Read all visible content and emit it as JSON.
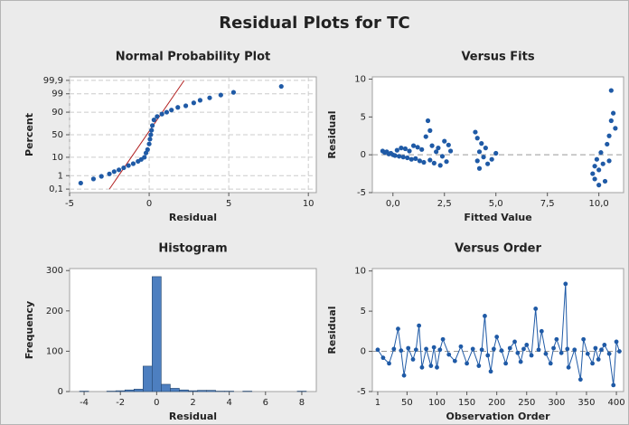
{
  "title": "Residual Plots for TC",
  "chart_data": [
    {
      "type": "scatter",
      "title": "Normal Probability Plot",
      "xlabel": "Residual",
      "ylabel": "Percent",
      "yscale": "probability",
      "grid": true,
      "color": "#1f5aa6",
      "xlim": [
        -5,
        10.5
      ],
      "xticks": [
        -5,
        0,
        5,
        10
      ],
      "ylim": [
        0.05,
        99.95
      ],
      "yticks": [
        {
          "value": 0.1,
          "label": "0,1"
        },
        1,
        10,
        50,
        90,
        99,
        {
          "value": 99.9,
          "label": "99,9"
        }
      ],
      "x": [
        -4.3,
        -3.5,
        -3,
        -2.5,
        -2.2,
        -1.9,
        -1.6,
        -1.3,
        -1,
        -0.7,
        -0.5,
        -0.3,
        -0.2,
        -0.1,
        0,
        0.05,
        0.1,
        0.15,
        0.2,
        0.3,
        0.5,
        0.8,
        1.1,
        1.4,
        1.8,
        2.3,
        2.8,
        3.2,
        3.8,
        4.5,
        5.3,
        8.3
      ],
      "values": [
        0.3,
        0.6,
        0.9,
        1.3,
        1.8,
        2.3,
        3,
        4,
        5,
        6.5,
        8,
        10,
        15,
        20,
        30,
        40,
        50,
        60,
        70,
        80,
        85,
        88,
        90,
        92,
        94,
        95,
        96.5,
        97.5,
        98.2,
        98.8,
        99.2,
        99.7
      ],
      "fit_line": {
        "color": "#b22222",
        "x": [
          -2.5,
          2.2
        ],
        "values": [
          0.1,
          99.9
        ]
      }
    },
    {
      "type": "scatter",
      "title": "Versus Fits",
      "xlabel": "Fitted Value",
      "ylabel": "Residual",
      "color": "#1f5aa6",
      "xlim": [
        -1,
        11.2
      ],
      "xticks": [
        {
          "value": 0,
          "label": "0,0"
        },
        {
          "value": 2.5,
          "label": "2,5"
        },
        {
          "value": 5,
          "label": "5,0"
        },
        {
          "value": 7.5,
          "label": "7,5"
        },
        {
          "value": 10,
          "label": "10,0"
        }
      ],
      "ylim": [
        -5,
        10.3
      ],
      "yticks": [
        -5,
        0,
        5,
        10
      ],
      "reference_line": 0,
      "x": [
        -0.5,
        -0.4,
        -0.3,
        -0.2,
        -0.1,
        0,
        0.1,
        0.2,
        0.3,
        0.4,
        0.5,
        0.6,
        0.7,
        0.8,
        0.9,
        1,
        1.1,
        1.2,
        1.3,
        1.4,
        1.5,
        1.6,
        1.7,
        1.8,
        1.8,
        1.9,
        2,
        2.1,
        2.2,
        2.3,
        2.4,
        2.5,
        2.6,
        2.7,
        2.8,
        4,
        4.1,
        4.1,
        4.2,
        4.2,
        4.3,
        4.4,
        4.5,
        4.6,
        4.8,
        5,
        9.7,
        9.8,
        9.8,
        9.9,
        10,
        10,
        10.1,
        10.2,
        10.3,
        10.4,
        10.5,
        10.5,
        10.6,
        10.6,
        10.7,
        10.8
      ],
      "values": [
        0.5,
        0.3,
        0.4,
        0.1,
        0.2,
        0,
        -0.1,
        0.6,
        -0.2,
        0.9,
        -0.3,
        0.8,
        -0.4,
        0.5,
        -0.6,
        1.2,
        -0.5,
        1,
        -0.8,
        0.7,
        -1,
        2.4,
        4.5,
        3.2,
        -0.7,
        1.2,
        -1.1,
        0.4,
        0.9,
        -1.4,
        -0.2,
        1.8,
        -0.9,
        1.3,
        0.5,
        3,
        2.2,
        -0.8,
        0.4,
        -1.8,
        1.5,
        -0.3,
        0.9,
        -1.2,
        -0.6,
        0.2,
        -2.5,
        -1.5,
        -3.2,
        -0.6,
        -2,
        -4,
        0.3,
        -1.2,
        -3.5,
        1.4,
        2.5,
        -0.8,
        8.5,
        4.5,
        5.5,
        3.5
      ]
    },
    {
      "type": "histogram",
      "title": "Histogram",
      "xlabel": "Residual",
      "ylabel": "Frequency",
      "color": "#4d7fc0",
      "xlim": [
        -4.8,
        8.8
      ],
      "xticks": [
        -4,
        -2,
        0,
        2,
        4,
        6,
        8
      ],
      "ylim": [
        0,
        305
      ],
      "yticks": [
        0,
        100,
        200,
        300
      ],
      "bins": [
        -4.25,
        -3.75,
        -3.25,
        -2.75,
        -2.25,
        -1.75,
        -1.25,
        -0.75,
        -0.25,
        0.25,
        0.75,
        1.25,
        1.75,
        2.25,
        2.75,
        3.25,
        3.75,
        4.25,
        4.75,
        5.25,
        5.75,
        6.25,
        6.75,
        7.25,
        7.75,
        8.25
      ],
      "values": [
        1,
        0,
        0,
        1,
        2,
        4,
        6,
        63,
        285,
        18,
        8,
        4,
        2,
        3,
        3,
        1,
        1,
        0,
        1,
        0,
        0,
        0,
        0,
        0,
        1
      ]
    },
    {
      "type": "line",
      "title": "Versus Order",
      "xlabel": "Observation Order",
      "ylabel": "Residual",
      "color": "#1f5aa6",
      "xlim": [
        -8,
        412
      ],
      "xticks": [
        1,
        50,
        100,
        150,
        200,
        250,
        300,
        350,
        400
      ],
      "ylim": [
        -5,
        10.3
      ],
      "yticks": [
        -5,
        0,
        5,
        10
      ],
      "reference_line": 0,
      "x": [
        1,
        10,
        20,
        28,
        35,
        40,
        45,
        52,
        60,
        65,
        70,
        75,
        82,
        90,
        95,
        100,
        105,
        110,
        120,
        130,
        140,
        150,
        160,
        170,
        175,
        180,
        185,
        190,
        195,
        200,
        208,
        215,
        222,
        230,
        235,
        240,
        245,
        250,
        258,
        265,
        270,
        275,
        282,
        290,
        295,
        300,
        308,
        315,
        318,
        320,
        330,
        340,
        345,
        352,
        360,
        365,
        370,
        375,
        380,
        388,
        395,
        400,
        405
      ],
      "values": [
        0.2,
        -0.8,
        -1.5,
        0.3,
        2.8,
        0.1,
        -3,
        0.4,
        -1,
        0.2,
        3.2,
        -2,
        0.3,
        -1.8,
        0.5,
        -2,
        0.2,
        1.5,
        -0.4,
        -1.2,
        0.6,
        -1.5,
        0.3,
        -1.8,
        0.2,
        4.4,
        -0.5,
        -2.5,
        0.3,
        1.8,
        0.1,
        -1.5,
        0.4,
        1.2,
        -0.2,
        -1.3,
        0.3,
        0.8,
        -0.5,
        5.3,
        0.2,
        2.5,
        -0.3,
        -1.5,
        0.4,
        1.5,
        -0.2,
        8.4,
        0.3,
        -2,
        0.2,
        -3.5,
        1.5,
        -0.3,
        -1.5,
        0.4,
        -1,
        0.2,
        0.8,
        -0.3,
        -4.2,
        1.2,
        0
      ]
    }
  ]
}
